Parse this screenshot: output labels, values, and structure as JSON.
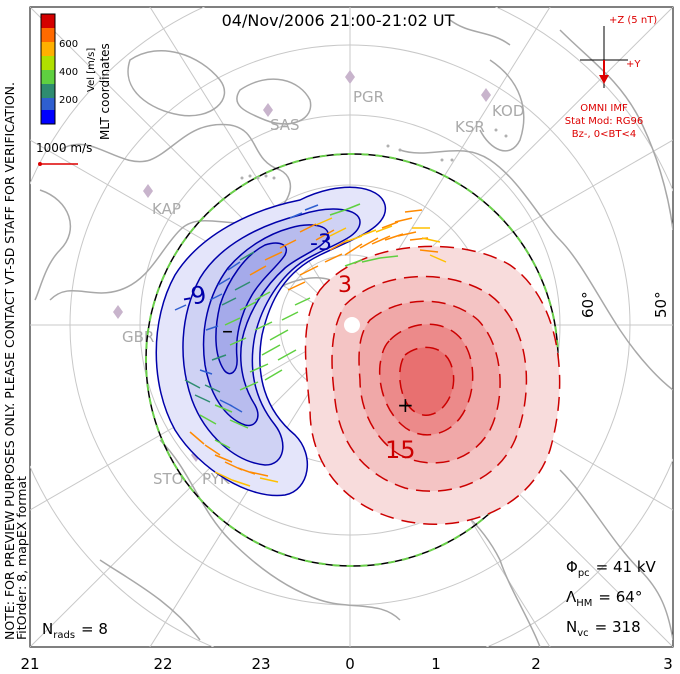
{
  "title": "04/Nov/2006 21:00-21:02 UT",
  "colorbar": {
    "label": "Vel [m/s]",
    "ticks": [
      "600",
      "400",
      "200"
    ],
    "colors": [
      "#d40000",
      "#ff6a00",
      "#ffb000",
      "#b0e000",
      "#5fd040",
      "#2e8c70",
      "#2f5fd0",
      "#0000ff"
    ]
  },
  "coord_label": "MLT coordinates",
  "scale_vector_label": "1000 m/s",
  "imf": {
    "z_label": "+Z (5 nT)",
    "y_label": "+Y",
    "source": "OMNI IMF",
    "model": "Stat Mod: RG96",
    "condition": "Bz-, 0<BT<4",
    "color": "#dd0000"
  },
  "side_note_line1": "NOTE: FOR PREVIEW PURPOSES ONLY. PLEASE CONTACT VT-SD STAFF FOR VERIFICATION.",
  "side_note_line2": "FitOrder: 8, mapEX format",
  "stations": [
    "PGR",
    "SAS",
    "KSR",
    "KOD",
    "KAP",
    "GBR",
    "STO",
    "PYK"
  ],
  "lat_labels": [
    "60°",
    "50°"
  ],
  "contours": {
    "negative_label": "-9",
    "positive_label": "15",
    "positive_label2": "3",
    "negative_label2": "-3",
    "negative_color": "#0000aa",
    "positive_color": "#cc0000"
  },
  "stats": {
    "phi_symbol": "Φ",
    "phi_sub": "pc",
    "phi_value": "= 41 kV",
    "lambda_symbol": "Λ",
    "lambda_sub": "HM",
    "lambda_value": "= 64°",
    "nvc_symbol": "N",
    "nvc_sub": "vc",
    "nvc_value": "= 318",
    "nrads_symbol": "N",
    "nrads_sub": "rads",
    "nrads_value": "= 8"
  },
  "mlt_ticks": [
    "21",
    "22",
    "23",
    "0",
    "1",
    "2",
    "3"
  ],
  "potential_extrema": {
    "min_marker": "–",
    "max_marker": "+"
  }
}
